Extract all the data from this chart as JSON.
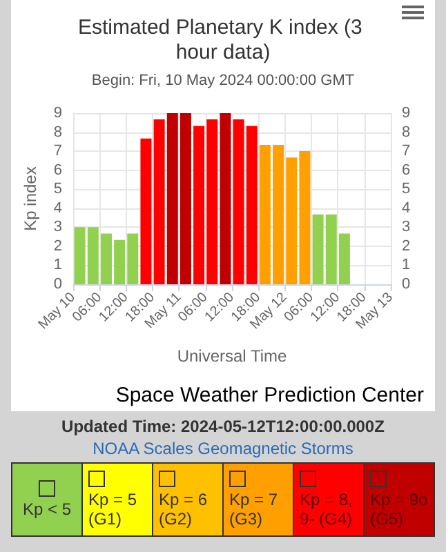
{
  "chart_data": {
    "type": "bar",
    "title": "Estimated Planetary K index (3 hour data)",
    "subtitle": "Begin: Fri, 10 May 2024 00:00:00 GMT",
    "xlabel": "Universal Time",
    "ylabel": "Kp index",
    "x": [
      "2024-05-10T01:30",
      "2024-05-10T04:30",
      "2024-05-10T07:30",
      "2024-05-10T10:30",
      "2024-05-10T13:30",
      "2024-05-10T16:30",
      "2024-05-10T19:30",
      "2024-05-10T22:30",
      "2024-05-11T01:30",
      "2024-05-11T04:30",
      "2024-05-11T07:30",
      "2024-05-11T10:30",
      "2024-05-11T13:30",
      "2024-05-11T16:30",
      "2024-05-11T19:30",
      "2024-05-11T22:30",
      "2024-05-12T01:30",
      "2024-05-12T04:30",
      "2024-05-12T07:30",
      "2024-05-12T10:30",
      "2024-05-12T13:30"
    ],
    "series": [
      {
        "name": "Kp < 5",
        "color": "#92d050",
        "values": [
          3,
          3,
          2.67,
          2.33,
          2.67,
          null,
          null,
          null,
          null,
          null,
          null,
          null,
          null,
          null,
          null,
          null,
          null,
          null,
          3.67,
          3.67,
          2.67
        ]
      },
      {
        "name": "Kp = 5 (G1)",
        "color": "#ffff00",
        "values": [
          null,
          null,
          null,
          null,
          null,
          null,
          null,
          null,
          null,
          null,
          null,
          null,
          null,
          null,
          null,
          null,
          null,
          null,
          null,
          null,
          null
        ]
      },
      {
        "name": "Kp = 6 (G2)",
        "color": "#ffc000",
        "values": [
          null,
          null,
          null,
          null,
          null,
          null,
          null,
          null,
          null,
          null,
          null,
          null,
          null,
          null,
          null,
          null,
          null,
          null,
          null,
          null,
          null
        ]
      },
      {
        "name": "Kp = 7 (G3)",
        "color": "#ffa000",
        "values": [
          null,
          null,
          null,
          null,
          null,
          null,
          null,
          null,
          null,
          null,
          null,
          null,
          null,
          null,
          7.33,
          7.33,
          6.67,
          7,
          null,
          null,
          null
        ]
      },
      {
        "name": "Kp = 8, 9- (G4)",
        "color": "#ff0000",
        "values": [
          null,
          null,
          null,
          null,
          null,
          7.67,
          8.67,
          null,
          null,
          8.33,
          8.67,
          null,
          8.67,
          8.33,
          null,
          null,
          null,
          null,
          null,
          null,
          null
        ]
      },
      {
        "name": "Kp = 9o (G5)",
        "color": "#c00000",
        "values": [
          null,
          null,
          null,
          null,
          null,
          null,
          null,
          9,
          9,
          null,
          null,
          9,
          null,
          null,
          null,
          null,
          null,
          null,
          null,
          null,
          null
        ]
      }
    ],
    "legend": "bottom",
    "legend_title": "NOAA Scales Geomagnetic Storms",
    "xlim": [
      "2024-05-10",
      "2024-05-13"
    ],
    "xticks": [
      {
        "value": "2024-05-10",
        "label": "May 10"
      },
      {
        "value": "2024-05-10T06:00",
        "label": "06:00"
      },
      {
        "value": "2024-05-10T12:00",
        "label": "12:00"
      },
      {
        "value": "2024-05-10T18:00",
        "label": "18:00"
      },
      {
        "value": "2024-05-11",
        "label": "May 11"
      },
      {
        "value": "2024-05-11T06:00",
        "label": "06:00"
      },
      {
        "value": "2024-05-11T12:00",
        "label": "12:00"
      },
      {
        "value": "2024-05-11T18:00",
        "label": "18:00"
      },
      {
        "value": "2024-05-12",
        "label": "May 12"
      },
      {
        "value": "2024-05-12T06:00",
        "label": "06:00"
      },
      {
        "value": "2024-05-12T12:00",
        "label": "12:00"
      },
      {
        "value": "2024-05-12T18:00",
        "label": "18:00"
      },
      {
        "value": "2024-05-13",
        "label": "May 13"
      }
    ],
    "ylim": [
      0,
      9
    ],
    "yticks": [
      0,
      1,
      2,
      3,
      4,
      5,
      6,
      7,
      8,
      9
    ],
    "y2lim": [
      0,
      9
    ],
    "y2ticks": [
      0,
      1,
      2,
      3,
      4,
      5,
      6,
      7,
      8,
      9
    ],
    "grid": true,
    "annotations": [
      "Space Weather Prediction Center",
      "Updated Time: 2024-05-12T12:00:00.000Z"
    ]
  }
}
